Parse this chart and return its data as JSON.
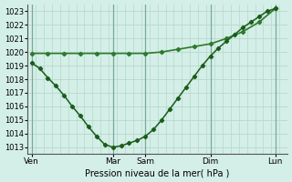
{
  "xlabel": "Pression niveau de la mer( hPa )",
  "bg_color": "#d4eee8",
  "grid_color": "#b8d8cc",
  "line_color_dark": "#1a5c1a",
  "line_color_mid": "#2d7a2d",
  "ylim": [
    1012.5,
    1023.5
  ],
  "yticks": [
    1013,
    1014,
    1015,
    1016,
    1017,
    1018,
    1019,
    1020,
    1021,
    1022,
    1023
  ],
  "x_day_labels": [
    "Ven",
    "Mar",
    "Sam",
    "Dim",
    "Lun"
  ],
  "x_day_positions": [
    0,
    10,
    14,
    22,
    30
  ],
  "xmin": -0.5,
  "xmax": 31.5,
  "curve1_x": [
    0,
    1,
    2,
    3,
    4,
    5,
    6,
    7,
    8,
    9,
    10,
    11,
    12,
    13,
    14,
    15,
    16,
    17,
    18,
    19,
    20,
    21,
    22,
    23,
    24,
    25,
    26,
    27,
    28,
    29,
    30
  ],
  "curve1_y": [
    1019.2,
    1018.8,
    1018.1,
    1017.5,
    1016.8,
    1016.0,
    1015.3,
    1014.5,
    1013.8,
    1013.2,
    1013.0,
    1013.1,
    1013.3,
    1013.5,
    1013.8,
    1014.3,
    1015.0,
    1015.8,
    1016.6,
    1017.4,
    1018.2,
    1019.0,
    1019.7,
    1020.3,
    1020.8,
    1021.3,
    1021.8,
    1022.2,
    1022.6,
    1023.0,
    1023.2
  ],
  "curve2_x": [
    0,
    2,
    4,
    6,
    8,
    10,
    12,
    14,
    16,
    18,
    20,
    22,
    24,
    26,
    28,
    30
  ],
  "curve2_y": [
    1019.9,
    1019.9,
    1019.9,
    1019.9,
    1019.9,
    1019.9,
    1019.9,
    1019.9,
    1020.0,
    1020.2,
    1020.4,
    1020.6,
    1021.0,
    1021.5,
    1022.2,
    1023.2
  ]
}
